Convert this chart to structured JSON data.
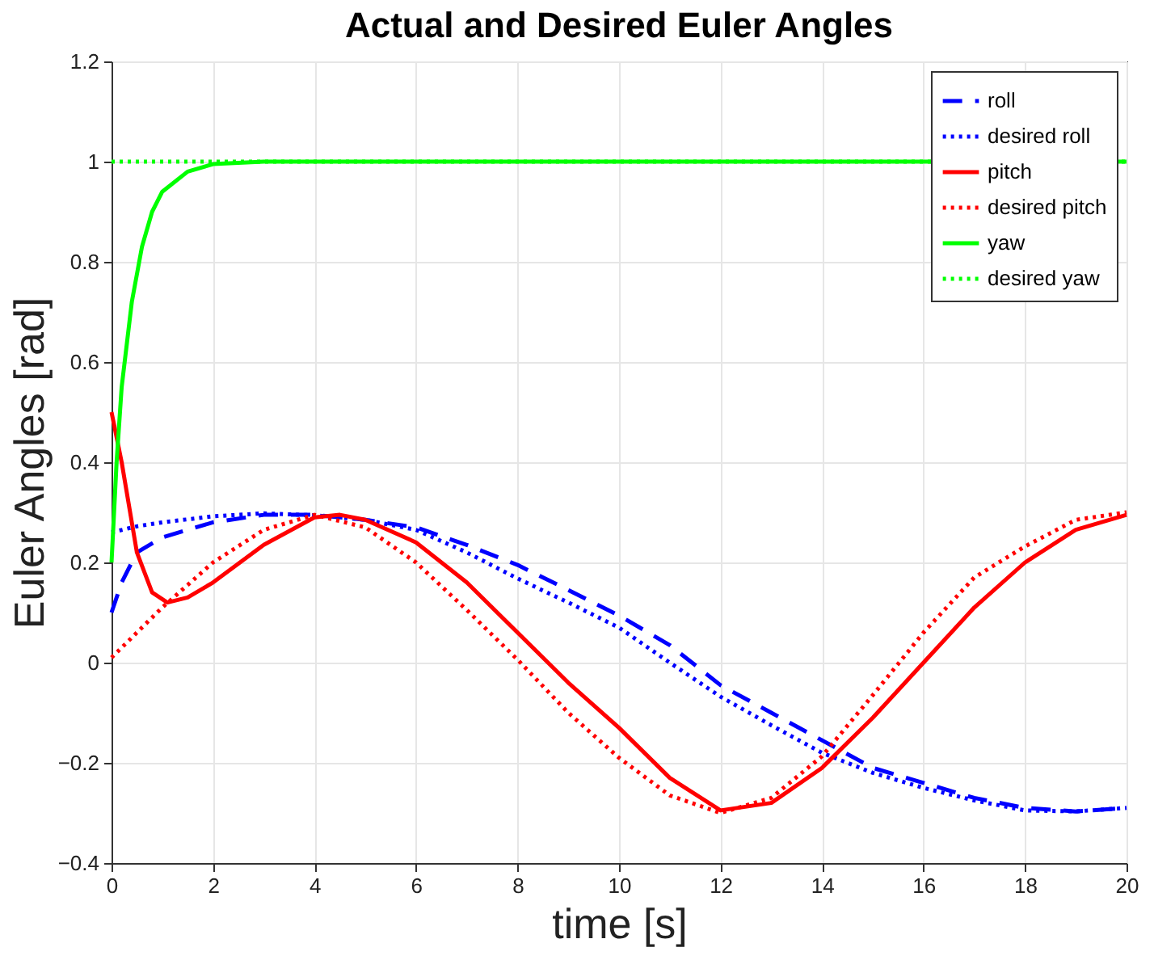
{
  "chart_data": {
    "type": "line",
    "title": "Actual and Desired Euler Angles",
    "xlabel": "time [s]",
    "ylabel": "Euler Angles [rad]",
    "xlim": [
      0,
      20
    ],
    "ylim": [
      -0.4,
      1.2
    ],
    "xticks": [
      0,
      2,
      4,
      6,
      8,
      10,
      12,
      14,
      16,
      18,
      20
    ],
    "yticks": [
      -0.4,
      -0.2,
      0,
      0.2,
      0.4,
      0.6,
      0.8,
      1,
      1.2
    ],
    "grid": true,
    "legend": "top right",
    "marker": "none",
    "series": [
      {
        "name": "roll",
        "color": "#0000ff",
        "line_style": "dashed",
        "x": [
          0,
          0.2,
          0.5,
          1,
          2,
          3,
          4,
          5,
          6,
          7,
          8,
          9,
          10,
          11,
          12,
          13,
          14,
          15,
          16,
          17,
          18,
          19,
          20
        ],
        "values": [
          0.1,
          0.16,
          0.22,
          0.25,
          0.28,
          0.295,
          0.295,
          0.285,
          0.27,
          0.235,
          0.195,
          0.145,
          0.094,
          0.035,
          -0.045,
          -0.1,
          -0.155,
          -0.21,
          -0.24,
          -0.27,
          -0.29,
          -0.297,
          -0.29
        ]
      },
      {
        "name": "desired roll",
        "color": "#0000ff",
        "line_style": "dotted",
        "x": [
          0,
          0.5,
          1,
          2,
          3,
          4,
          5,
          6,
          7,
          8,
          9,
          10,
          11,
          12,
          13,
          14,
          15,
          16,
          17,
          18,
          19,
          20
        ],
        "values": [
          0.26,
          0.272,
          0.28,
          0.292,
          0.298,
          0.294,
          0.285,
          0.265,
          0.22,
          0.168,
          0.12,
          0.07,
          0.0,
          -0.068,
          -0.125,
          -0.18,
          -0.22,
          -0.25,
          -0.275,
          -0.295,
          -0.297,
          -0.29
        ]
      },
      {
        "name": "pitch",
        "color": "#ff0000",
        "line_style": "solid",
        "x": [
          0,
          0.2,
          0.5,
          0.8,
          1.1,
          1.5,
          2,
          3,
          4,
          4.5,
          5,
          6,
          7,
          8,
          9,
          10,
          11,
          12,
          13,
          14,
          15,
          16,
          17,
          18,
          19,
          20
        ],
        "values": [
          0.5,
          0.4,
          0.22,
          0.14,
          0.12,
          0.13,
          0.16,
          0.235,
          0.29,
          0.295,
          0.285,
          0.24,
          0.16,
          0.06,
          -0.04,
          -0.13,
          -0.23,
          -0.295,
          -0.28,
          -0.21,
          -0.11,
          0.0,
          0.11,
          0.2,
          0.265,
          0.295
        ]
      },
      {
        "name": "desired pitch",
        "color": "#ff0000",
        "line_style": "dotted",
        "x": [
          0,
          1,
          2,
          3,
          4,
          5,
          6,
          7,
          8,
          9,
          10,
          11,
          12,
          13,
          14,
          15,
          16,
          17,
          18,
          19,
          20
        ],
        "values": [
          0.01,
          0.11,
          0.2,
          0.265,
          0.295,
          0.27,
          0.2,
          0.105,
          0.006,
          -0.1,
          -0.19,
          -0.265,
          -0.3,
          -0.27,
          -0.187,
          -0.065,
          0.06,
          0.17,
          0.232,
          0.285,
          0.3
        ]
      },
      {
        "name": "yaw",
        "color": "#00ff00",
        "line_style": "solid",
        "x": [
          0,
          0.1,
          0.2,
          0.4,
          0.6,
          0.8,
          1,
          1.5,
          2,
          3,
          20
        ],
        "values": [
          0.2,
          0.4,
          0.55,
          0.72,
          0.83,
          0.9,
          0.94,
          0.98,
          0.995,
          1,
          1
        ]
      },
      {
        "name": "desired yaw",
        "color": "#00ff00",
        "line_style": "dotted",
        "x": [
          0,
          20
        ],
        "values": [
          1,
          1
        ]
      }
    ]
  }
}
